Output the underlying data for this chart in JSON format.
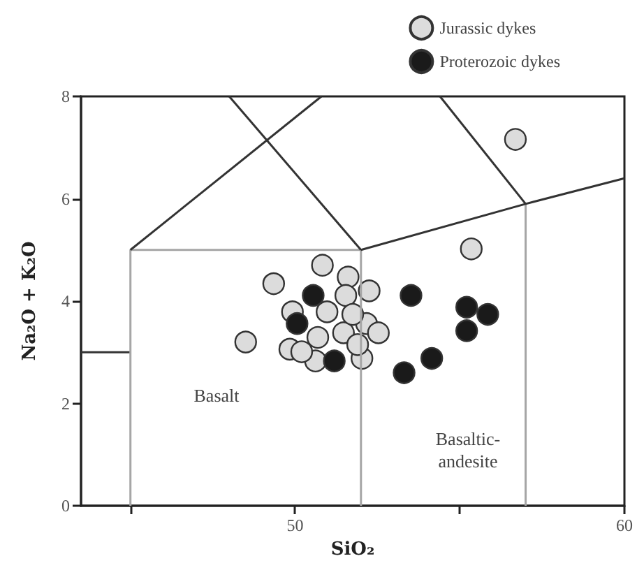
{
  "chart_data": {
    "type": "scatter",
    "xlabel": "SiO₂",
    "ylabel": "Na₂O + K₂O",
    "xlim": [
      43.5,
      60
    ],
    "ylim": [
      0,
      8
    ],
    "xticks": [
      {
        "value": 45,
        "label": null
      },
      50,
      {
        "value": 55,
        "label": null
      },
      60
    ],
    "yticks": [
      0,
      2,
      4,
      6,
      8
    ],
    "grid": false,
    "legend": "top right",
    "annotations": [
      "Basalt",
      "Basaltic-\nandesite"
    ],
    "series": [
      {
        "type": "line",
        "color": "#333333",
        "x": [
          43.5,
          45
        ],
        "values": [
          3,
          3
        ]
      },
      {
        "type": "line",
        "color": "#a6a6a6",
        "x": [
          45,
          45,
          52,
          52
        ],
        "values": [
          0,
          5,
          5,
          0
        ]
      },
      {
        "type": "line",
        "color": "#a6a6a6",
        "x": [
          57,
          57
        ],
        "values": [
          0,
          5.9
        ]
      },
      {
        "type": "line",
        "color": "#333333",
        "x": [
          45,
          50.8
        ],
        "values": [
          5,
          8
        ]
      },
      {
        "type": "line",
        "color": "#333333",
        "x": [
          48,
          52
        ],
        "values": [
          8,
          5
        ]
      },
      {
        "type": "line",
        "color": "#333333",
        "x": [
          52,
          57,
          60
        ],
        "values": [
          5,
          5.9,
          6.4
        ]
      },
      {
        "type": "line",
        "color": "#333333",
        "x": [
          54.4,
          57
        ],
        "values": [
          8,
          5.9
        ]
      },
      {
        "name": "Jurassic dykes",
        "color": "#dcdcdc",
        "marker": "circle",
        "x": [
          50.83,
          49.35,
          48.5,
          51.61,
          52.25,
          51.54,
          50.97,
          49.92,
          52.17,
          51.47,
          50.69,
          49.84,
          50.62,
          52.03,
          52.53,
          51.9,
          51.75,
          50.2,
          55.35,
          56.69
        ],
        "values": [
          4.7,
          4.34,
          3.2,
          4.47,
          4.2,
          4.11,
          3.79,
          3.79,
          3.56,
          3.38,
          3.29,
          3.06,
          2.83,
          2.88,
          3.38,
          3.15,
          3.74,
          3.01,
          5.02,
          7.16
        ]
      },
      {
        "name": "Proterozoic dykes",
        "color": "#1a1a1a",
        "marker": "circle",
        "x": [
          50.55,
          50.06,
          51.19,
          53.52,
          53.31,
          54.15,
          55.21,
          55.85,
          55.21
        ],
        "values": [
          4.11,
          3.56,
          2.83,
          4.11,
          2.6,
          2.88,
          3.88,
          3.74,
          3.42
        ]
      }
    ]
  }
}
